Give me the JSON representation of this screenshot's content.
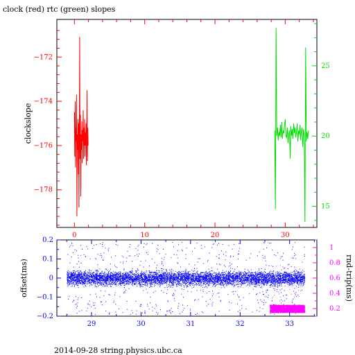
{
  "title": "clock (red) rtc (green) slopes",
  "footer": "2014-09-28 string.physics.ubc.ca",
  "colors": {
    "clock": "#ff0000",
    "rtc": "#00dd00",
    "offset": "#0000ff",
    "rndtrip": "#ff00ff",
    "frame": "#000000"
  },
  "chart_data": [
    {
      "type": "line",
      "title": "clock (red) rtc (green) slopes",
      "ylabel": "clockslope",
      "y2label": "",
      "xlim": [
        -2.5,
        34.5
      ],
      "ylim": [
        -179.7,
        -170.3
      ],
      "y2lim": [
        13.5,
        28.3
      ],
      "x_ticks": [
        0,
        10,
        20,
        30
      ],
      "x_tick_labels": [
        "0",
        "10",
        "20",
        "30"
      ],
      "y_ticks": [
        -172,
        -174,
        -176,
        -178
      ],
      "y_tick_labels": [
        "-172",
        "-174",
        "-176",
        "-178"
      ],
      "y2_ticks": [
        25,
        20,
        15
      ],
      "y2_tick_labels": [
        "25",
        "20",
        "15"
      ],
      "series": [
        {
          "name": "clock (red)",
          "axis": "left",
          "x": [
            0.0,
            0.05,
            0.1,
            0.15,
            0.2,
            0.25,
            0.3,
            0.35,
            0.4,
            0.45,
            0.5,
            0.55,
            0.6,
            0.65,
            0.7,
            0.75,
            0.8,
            0.85,
            0.9,
            0.95,
            1.0,
            1.05,
            1.1,
            1.15,
            1.2,
            1.25,
            1.3,
            1.35,
            1.4,
            1.45,
            1.5,
            1.55,
            1.6,
            1.65,
            1.7,
            1.75,
            1.8,
            1.85,
            1.9,
            1.95
          ],
          "y": [
            -174.5,
            -176.5,
            -174.0,
            -177.0,
            -175.2,
            -175.8,
            -173.7,
            -179.2,
            -175.5,
            -176.2,
            -174.8,
            -177.3,
            -175.0,
            -178.8,
            -175.5,
            -171.1,
            -176.6,
            -174.6,
            -178.3,
            -175.5,
            -176.2,
            -174.9,
            -176.8,
            -175.3,
            -175.8,
            -174.4,
            -176.6,
            -175.2,
            -176.0,
            -174.8,
            -176.5,
            -175.4,
            -176.0,
            -175.0,
            -176.9,
            -175.6,
            -173.5,
            -176.7,
            -175.2,
            -176.0
          ]
        },
        {
          "name": "rtc (green)",
          "axis": "right",
          "x": [
            28.5,
            28.6,
            28.7,
            28.8,
            28.9,
            29.0,
            29.1,
            29.2,
            29.3,
            29.4,
            29.5,
            29.6,
            29.7,
            29.8,
            29.9,
            30.0,
            30.1,
            30.2,
            30.3,
            30.4,
            30.5,
            30.6,
            30.7,
            30.8,
            30.9,
            31.0,
            31.1,
            31.2,
            31.3,
            31.4,
            31.5,
            31.6,
            31.7,
            31.8,
            31.9,
            32.0,
            32.1,
            32.2,
            32.3,
            32.4,
            32.5,
            32.6,
            32.7,
            32.8,
            32.9,
            33.0,
            33.1,
            33.2,
            33.3
          ],
          "y": [
            20.4,
            14.8,
            27.7,
            20.0,
            20.6,
            19.7,
            20.3,
            20.0,
            20.8,
            19.9,
            21.0,
            19.8,
            20.4,
            20.2,
            20.8,
            21.2,
            20.0,
            19.9,
            20.6,
            19.5,
            20.1,
            20.4,
            18.4,
            20.7,
            20.0,
            20.5,
            19.8,
            20.9,
            20.2,
            20.6,
            19.9,
            20.3,
            20.9,
            19.6,
            20.4,
            20.1,
            20.8,
            19.7,
            20.3,
            20.6,
            19.2,
            20.5,
            20.0,
            13.9,
            26.3,
            19.6,
            20.3,
            19.8,
            20.4
          ]
        }
      ]
    },
    {
      "type": "scatter",
      "ylabel": "offset(ms)",
      "y2label": "rnd-trip(ms)",
      "xlim": [
        28.3,
        33.55
      ],
      "ylim": [
        -0.2,
        0.2
      ],
      "y2lim": [
        0.1,
        1.1
      ],
      "x_ticks": [
        29,
        30,
        31,
        32,
        33
      ],
      "x_tick_labels": [
        "29",
        "30",
        "31",
        "32",
        "33"
      ],
      "y_ticks": [
        0.2,
        0.1,
        0,
        -0.1,
        -0.2
      ],
      "y_tick_labels": [
        "0.2",
        "0.1",
        "0",
        "-0.1",
        "-0.2"
      ],
      "y2_ticks": [
        1,
        0.8,
        0.6,
        0.4,
        0.2
      ],
      "y2_tick_labels": [
        "1",
        "0.8",
        "0.6",
        "0.4",
        "0.2"
      ],
      "offset_points": {
        "x_range": [
          28.5,
          33.3
        ],
        "core_band": [
          -0.03,
          0.03
        ],
        "scatter_range": [
          -0.19,
          0.19
        ]
      },
      "rndtrip_points": {
        "x_range": [
          32.6,
          33.3
        ],
        "band": [
          0.15,
          0.25
        ]
      }
    }
  ]
}
